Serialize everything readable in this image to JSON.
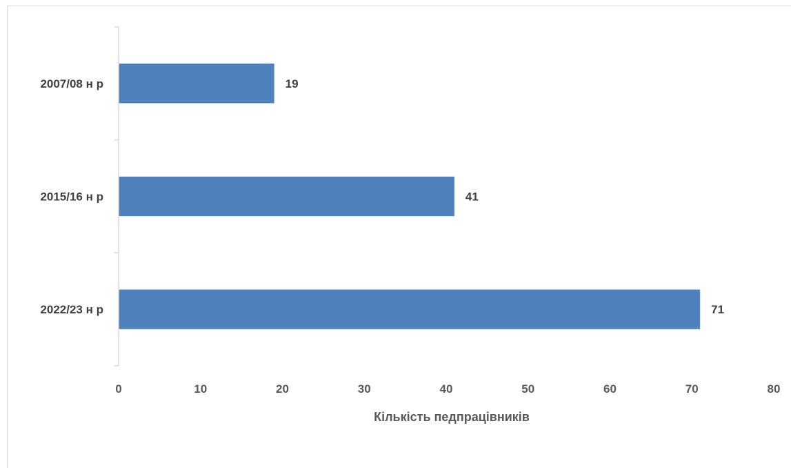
{
  "chart_data": {
    "type": "bar",
    "orientation": "horizontal",
    "categories": [
      "2007/08 н р",
      "2015/16 н р",
      "2022/23 н р"
    ],
    "values": [
      19,
      41,
      71
    ],
    "data_labels": [
      "19",
      "41",
      "71"
    ],
    "xlabel": "Кількість педпрацівників",
    "ylabel": "",
    "xlim": [
      0,
      80
    ],
    "xticks": [
      "0",
      "10",
      "20",
      "30",
      "40",
      "50",
      "60",
      "70",
      "80"
    ],
    "grid": false,
    "bar_color": "#4f81bd"
  }
}
